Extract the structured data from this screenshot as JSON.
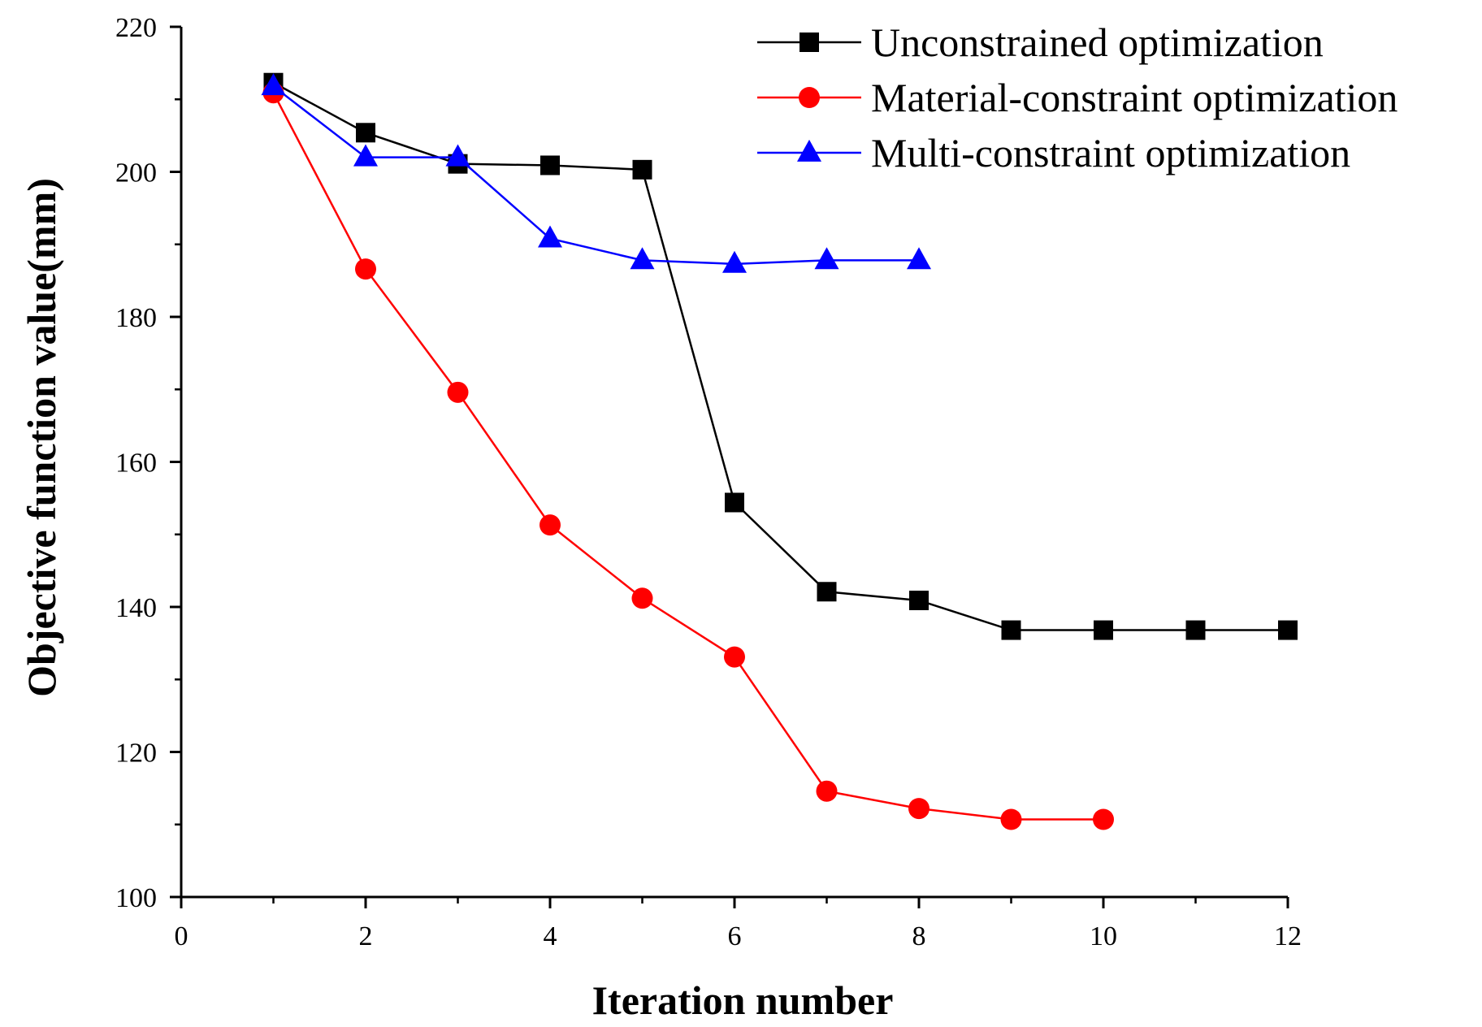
{
  "chart_data": {
    "type": "line",
    "title": "",
    "xlabel": "Iteration number",
    "ylabel": "Objective function value(mm)",
    "xlim": [
      0,
      12
    ],
    "ylim": [
      100,
      220
    ],
    "xticks": [
      0,
      2,
      4,
      6,
      8,
      10,
      12
    ],
    "yticks": [
      100,
      120,
      140,
      160,
      180,
      200,
      220
    ],
    "legend_position": "top-right",
    "series": [
      {
        "name": "Unconstrained optimization",
        "color": "#000000",
        "marker": "square",
        "x": [
          1,
          2,
          3,
          4,
          5,
          6,
          7,
          8,
          9,
          10,
          11,
          12
        ],
        "y": [
          212.3,
          205.4,
          201.1,
          200.9,
          200.3,
          154.4,
          142.1,
          140.9,
          136.8,
          136.8,
          136.8,
          136.8
        ]
      },
      {
        "name": "Material-constraint optimization",
        "color": "#ff0000",
        "marker": "circle",
        "x": [
          1,
          2,
          3,
          4,
          5,
          6,
          7,
          8,
          9,
          10
        ],
        "y": [
          210.9,
          186.6,
          169.6,
          151.3,
          141.2,
          133.1,
          114.6,
          112.2,
          110.7,
          110.7
        ]
      },
      {
        "name": "Multi-constraint optimization",
        "color": "#0000ff",
        "marker": "triangle",
        "x": [
          1,
          2,
          3,
          4,
          5,
          6,
          7,
          8
        ],
        "y": [
          211.8,
          202.0,
          202.0,
          190.8,
          187.8,
          187.3,
          187.8,
          187.8
        ]
      }
    ]
  }
}
